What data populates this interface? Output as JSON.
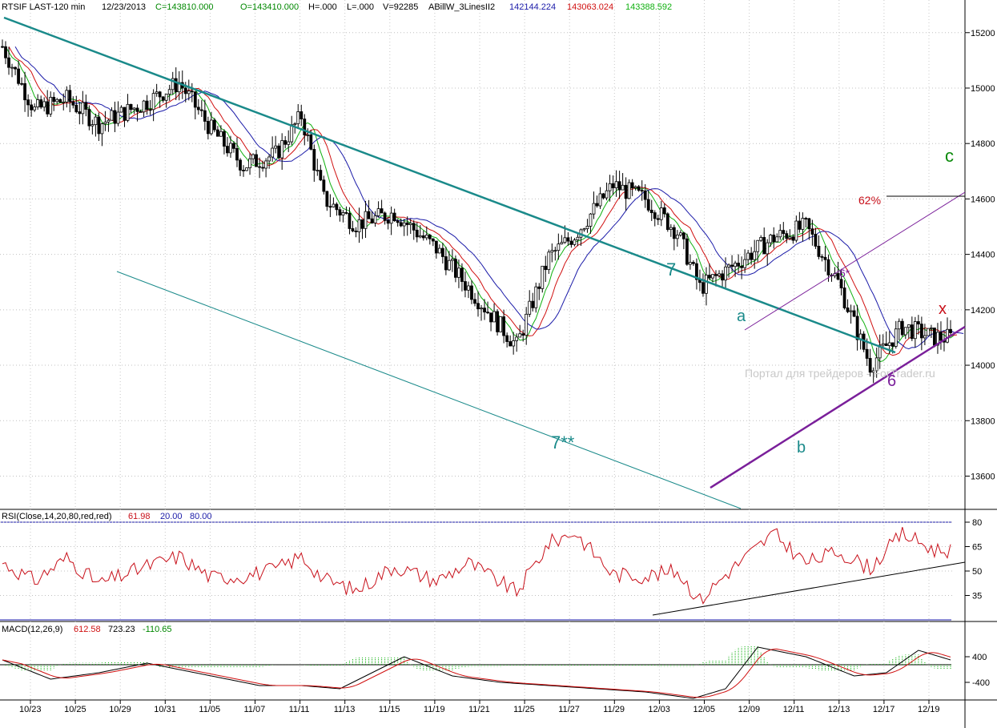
{
  "header": {
    "symbol": "RTSIF LAST-120 min",
    "date": "12/23/2013",
    "close": "C=143810.000",
    "open": "O=143410.000",
    "high": "H=.000",
    "low": "L=.000",
    "volume": "V=92285",
    "indicator": "ABillW_3LinesII2",
    "ind_val_blue": "142144.224",
    "ind_val_red": "143063.024",
    "ind_val_green": "143388.592"
  },
  "colors": {
    "candle": "#000000",
    "ma_blue": "#1a1aa8",
    "ma_red": "#d01010",
    "ma_green": "#10b010",
    "teal": "#1a8a8a",
    "purple": "#7a1f9a",
    "rsi_line": "#c8101a",
    "grid": "#b8b8b8",
    "macd_black": "#000000",
    "macd_red": "#d01010",
    "macd_hist": "#10b010"
  },
  "watermark": "Портал для трейдеров - ForTrader.ru",
  "annotations": {
    "label_7": "7",
    "label_7ss": "7**",
    "label_a": "a",
    "label_b": "b",
    "label_c": "c",
    "label_6": "6",
    "label_6s": "6*",
    "label_x": "x",
    "label_62": "62%"
  },
  "rsi_header": {
    "title": "RSI(Close,14,20,80,red,red)",
    "value": "61.98",
    "low": "20.00",
    "high": "80.00"
  },
  "macd_header": {
    "title": "MACD(12,26,9)",
    "macd": "612.58",
    "signal": "723.23",
    "hist": "-110.65"
  },
  "chart_data": [
    {
      "type": "candlestick",
      "panel": "price",
      "y_axis_ticks": [
        "13600",
        "13800",
        "14000",
        "14200",
        "14400",
        "14600",
        "14800",
        "15000",
        "15200"
      ],
      "ylim": [
        13480,
        15260
      ],
      "x_tick_labels": [
        "10/23",
        "10/25",
        "10/29",
        "10/31",
        "11/05",
        "11/07",
        "11/11",
        "11/13",
        "11/15",
        "11/19",
        "11/21",
        "11/25",
        "11/27",
        "11/29",
        "12/03",
        "12/05",
        "12/09",
        "12/11",
        "12/13",
        "12/17",
        "12/19"
      ],
      "close_path": {
        "x": [
          0,
          10,
          20,
          30,
          45,
          55,
          65,
          75,
          85,
          93,
          100,
          110,
          122,
          135,
          145,
          160,
          170,
          178,
          190,
          200,
          210,
          217,
          225,
          240,
          250,
          260,
          270,
          280,
          290
        ],
        "y": [
          15150,
          14920,
          14960,
          14870,
          14950,
          15020,
          14850,
          14720,
          14760,
          14900,
          14600,
          14510,
          14550,
          14420,
          14280,
          14070,
          14390,
          14470,
          14650,
          14600,
          14480,
          14280,
          14340,
          14460,
          14500,
          14300,
          14000,
          14140,
          14100
        ]
      },
      "x_range_bars": [
        0,
        295
      ],
      "moving_averages_note": "green, red and blue moving averages shown",
      "trendlines": [
        {
          "name": "7",
          "from": [
            0,
            15220
          ],
          "to": [
            290,
            14050
          ]
        },
        {
          "name": "7** channel",
          "from": [
            37,
            13950
          ],
          "to": [
            235,
            13520
          ]
        },
        {
          "name": "6",
          "from": [
            222,
            13570
          ],
          "to": [
            310,
            14140
          ]
        },
        {
          "name": "6* channel",
          "from": [
            233,
            14150
          ],
          "to": [
            310,
            14600
          ]
        }
      ]
    },
    {
      "type": "line",
      "panel": "rsi",
      "name": "RSI(Close,14,20,80,red,red)",
      "y_axis_ticks": [
        "35",
        "50",
        "65",
        "80"
      ],
      "ylim": [
        20,
        80
      ],
      "x": [
        0,
        10,
        20,
        30,
        45,
        55,
        65,
        75,
        85,
        93,
        100,
        110,
        122,
        135,
        145,
        160,
        170,
        178,
        190,
        200,
        210,
        217,
        225,
        240,
        250,
        260,
        270,
        280,
        290
      ],
      "y": [
        55,
        44,
        58,
        42,
        53,
        59,
        46,
        47,
        51,
        59,
        45,
        38,
        53,
        44,
        55,
        37,
        67,
        74,
        48,
        47,
        50,
        32,
        48,
        73,
        55,
        62,
        52,
        73,
        63
      ]
    },
    {
      "type": "line",
      "panel": "macd",
      "name": "MACD(12,26,9)",
      "y_axis_ticks": [
        "400",
        "-400"
      ],
      "ylim": [
        -900,
        1100
      ],
      "series": [
        {
          "name": "macd",
          "x": [
            0,
            15,
            30,
            45,
            60,
            80,
            93,
            105,
            115,
            125,
            140,
            155,
            170,
            185,
            200,
            215,
            225,
            235,
            250,
            265,
            275,
            285,
            295
          ],
          "y": [
            300,
            -300,
            -100,
            200,
            -100,
            -500,
            -500,
            -600,
            -100,
            400,
            -200,
            -400,
            -500,
            -600,
            -700,
            -900,
            -600,
            700,
            400,
            -200,
            -100,
            600,
            300
          ]
        }
      ]
    }
  ]
}
